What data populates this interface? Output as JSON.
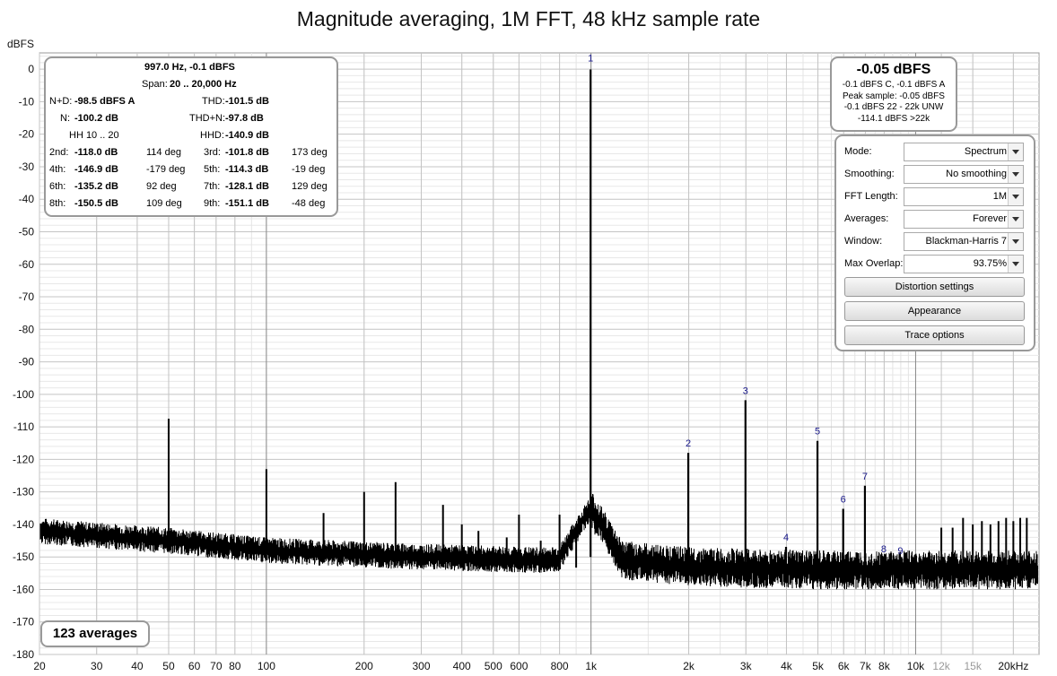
{
  "title": "Magnitude averaging, 1M FFT, 48 kHz sample rate",
  "y_unit_label": "dBFS",
  "stats": {
    "freq": "997.0 Hz, -0.1 dBFS",
    "span_label": "Span:",
    "span": "20 .. 20,000 Hz",
    "nd_label": "N+D:",
    "nd": "-98.5 dBFS A",
    "thd_label": "THD:",
    "thd": "-101.5 dB",
    "n_label": "N:",
    "n": "-100.2 dB",
    "thdn_label": "THD+N:",
    "thdn": "-97.8 dB",
    "hh": "HH 10 .. 20",
    "hhd_label": "HHD:",
    "hhd": "-140.9 dB",
    "harmonics": [
      {
        "lab": "2nd:",
        "db": "-118.0 dB",
        "deg": "114 deg",
        "lab2": "3rd:",
        "db2": "-101.8 dB",
        "deg2": "173 deg"
      },
      {
        "lab": "4th:",
        "db": "-146.9 dB",
        "deg": "-179 deg",
        "lab2": "5th:",
        "db2": "-114.3 dB",
        "deg2": "-19 deg"
      },
      {
        "lab": "6th:",
        "db": "-135.2 dB",
        "deg": "92 deg",
        "lab2": "7th:",
        "db2": "-128.1 dB",
        "deg2": "129 deg"
      },
      {
        "lab": "8th:",
        "db": "-150.5 dB",
        "deg": "109 deg",
        "lab2": "9th:",
        "db2": "-151.1 dB",
        "deg2": "-48 deg"
      }
    ]
  },
  "peak": {
    "main": "-0.05 dBFS",
    "lines": [
      "-0.1 dBFS C, -0.1 dBFS A",
      "Peak sample: -0.05 dBFS",
      "-0.1 dBFS 22 - 22k UNW",
      "-114.1 dBFS >22k"
    ]
  },
  "settings": {
    "rows": [
      {
        "label": "Mode:",
        "value": "Spectrum"
      },
      {
        "label": "Smoothing:",
        "value": "No  smoothing"
      },
      {
        "label": "FFT Length:",
        "value": "1M"
      },
      {
        "label": "Averages:",
        "value": "Forever"
      },
      {
        "label": "Window:",
        "value": "Blackman-Harris 7"
      },
      {
        "label": "Max Overlap:",
        "value": "93.75%"
      }
    ],
    "buttons": [
      "Distortion settings",
      "Appearance",
      "Trace options"
    ]
  },
  "averages_label": "123 averages",
  "chart_data": {
    "type": "line",
    "xscale": "log",
    "xlim": [
      20,
      24000
    ],
    "ylim": [
      -180,
      5
    ],
    "grid": true,
    "y_ticks": [
      0,
      -10,
      -20,
      -30,
      -40,
      -50,
      -60,
      -70,
      -80,
      -90,
      -100,
      -110,
      -120,
      -130,
      -140,
      -150,
      -160,
      -170,
      -180
    ],
    "x_ticks": [
      {
        "v": 20,
        "t": "20"
      },
      {
        "v": 30,
        "t": "30"
      },
      {
        "v": 40,
        "t": "40"
      },
      {
        "v": 50,
        "t": "50"
      },
      {
        "v": 60,
        "t": "60"
      },
      {
        "v": 70,
        "t": "70"
      },
      {
        "v": 80,
        "t": "80"
      },
      {
        "v": 100,
        "t": "100"
      },
      {
        "v": 200,
        "t": "200"
      },
      {
        "v": 300,
        "t": "300"
      },
      {
        "v": 400,
        "t": "400"
      },
      {
        "v": 500,
        "t": "500"
      },
      {
        "v": 600,
        "t": "600"
      },
      {
        "v": 800,
        "t": "800"
      },
      {
        "v": 1000,
        "t": "1k"
      },
      {
        "v": 2000,
        "t": "2k"
      },
      {
        "v": 3000,
        "t": "3k"
      },
      {
        "v": 4000,
        "t": "4k"
      },
      {
        "v": 5000,
        "t": "5k"
      },
      {
        "v": 6000,
        "t": "6k"
      },
      {
        "v": 7000,
        "t": "7k"
      },
      {
        "v": 8000,
        "t": "8k"
      },
      {
        "v": 10000,
        "t": "10k"
      },
      {
        "v": 12000,
        "t": "12k"
      },
      {
        "v": 15000,
        "t": "15k"
      },
      {
        "v": 20000,
        "t": "20kHz"
      }
    ],
    "noise_floor": [
      [
        20,
        -142
      ],
      [
        50,
        -145
      ],
      [
        100,
        -148
      ],
      [
        300,
        -150
      ],
      [
        700,
        -151
      ],
      [
        1000,
        -150
      ],
      [
        2000,
        -153
      ],
      [
        5000,
        -154
      ],
      [
        10000,
        -154
      ],
      [
        24000,
        -154
      ]
    ],
    "spurs": [
      [
        50,
        -107.5
      ],
      [
        100,
        -123
      ],
      [
        150,
        -136.5
      ],
      [
        200,
        -130
      ],
      [
        250,
        -127
      ],
      [
        350,
        -134
      ],
      [
        400,
        -140
      ],
      [
        450,
        -142
      ],
      [
        550,
        -144
      ],
      [
        600,
        -137
      ],
      [
        700,
        -145
      ],
      [
        800,
        -137
      ],
      [
        900,
        -140
      ],
      [
        1250,
        -146
      ],
      [
        12000,
        -141
      ],
      [
        13000,
        -141
      ],
      [
        14000,
        -138
      ],
      [
        15000,
        -140
      ],
      [
        16000,
        -139
      ],
      [
        17000,
        -140
      ],
      [
        18000,
        -139
      ],
      [
        19000,
        -138
      ],
      [
        20000,
        -139
      ],
      [
        21000,
        -138
      ],
      [
        22000,
        -138
      ]
    ],
    "fundamental": {
      "x": 997,
      "y": -0.1,
      "label": "1"
    },
    "harmonics": [
      {
        "label": "2",
        "x": 1994,
        "y": -118.0
      },
      {
        "label": "3",
        "x": 2991,
        "y": -101.8
      },
      {
        "label": "4",
        "x": 3988,
        "y": -146.9
      },
      {
        "label": "5",
        "x": 4985,
        "y": -114.3
      },
      {
        "label": "6",
        "x": 5982,
        "y": -135.2
      },
      {
        "label": "7",
        "x": 6979,
        "y": -128.1
      },
      {
        "label": "8",
        "x": 7976,
        "y": -150.5
      },
      {
        "label": "9",
        "x": 8973,
        "y": -151.1
      }
    ]
  }
}
